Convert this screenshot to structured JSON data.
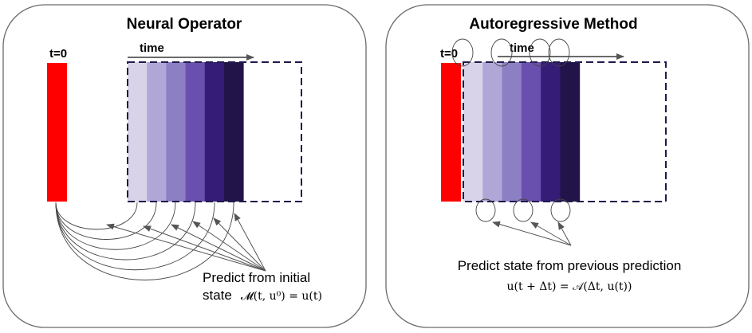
{
  "colors": {
    "initial": "#ff0000",
    "frames": [
      "#d9d3e9",
      "#b1a7d7",
      "#8d7fc4",
      "#6a50ae",
      "#341c77",
      "#221448"
    ],
    "dash": "#1f1a4a",
    "panel_stroke": "#6b6b6b",
    "arrow": "#555555"
  },
  "left": {
    "title": "Neural Operator",
    "t0": "t=0",
    "time": "time",
    "caption_line1": "Predict from initial",
    "caption_line2": "state",
    "formula": "𝓜(t, u⁰) = u(t)"
  },
  "right": {
    "title": "Autoregressive Method",
    "t0": "t=0",
    "time": "time",
    "caption": "Predict state from previous prediction",
    "formula": "u(t + Δt) = 𝒜(Δt, u(t))"
  }
}
